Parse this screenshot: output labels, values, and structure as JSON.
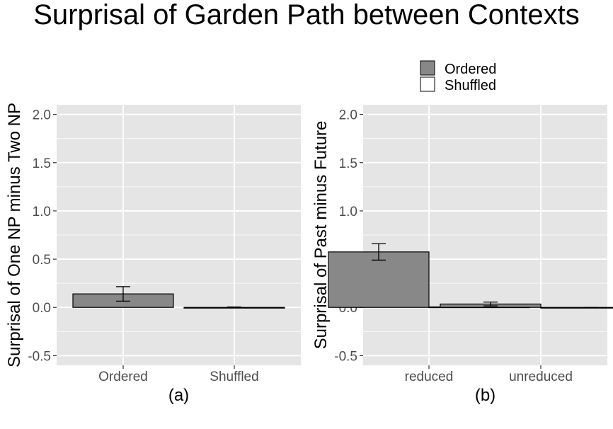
{
  "title": "Surprisal of Garden Path between Contexts",
  "legend": {
    "placement": "top-right",
    "items": [
      {
        "label": "Ordered",
        "color": "#888888"
      },
      {
        "label": "Shuffled",
        "color": "#ffffff"
      }
    ]
  },
  "colors": {
    "panel_background": "#e5e5e5",
    "grid": "#ffffff",
    "bar_outline": "#000000"
  },
  "chart_data": [
    {
      "type": "bar",
      "panel_label": "(a)",
      "ylabel": "Surprisal of One NP minus Two NP",
      "categories": [
        "Ordered",
        "Shuffled"
      ],
      "series": [
        {
          "name": "Ordered",
          "values": [
            0.14,
            null
          ],
          "error": [
            0.075,
            null
          ]
        },
        {
          "name": "Shuffled",
          "values": [
            null,
            0.0
          ],
          "error": [
            null,
            0.004
          ]
        }
      ],
      "ylim": [
        -0.6,
        2.1
      ],
      "yticks": [
        -0.5,
        0.0,
        0.5,
        1.0,
        1.5,
        2.0
      ],
      "ytick_labels": [
        "-0.5",
        "0.0",
        "0.5",
        "1.0",
        "1.5",
        "2.0"
      ],
      "grid": true
    },
    {
      "type": "bar",
      "panel_label": "(b)",
      "ylabel": "Surprisal of Past minus Future",
      "categories": [
        "reduced",
        "unreduced"
      ],
      "series": [
        {
          "name": "Ordered",
          "values": [
            0.575,
            0.035
          ],
          "error": [
            0.085,
            0.02
          ]
        },
        {
          "name": "Shuffled",
          "values": [
            0.005,
            -0.002
          ],
          "error": [
            0.003,
            0.002
          ]
        }
      ],
      "ylim": [
        -0.6,
        2.1
      ],
      "yticks": [
        -0.5,
        0.0,
        0.5,
        1.0,
        1.5,
        2.0
      ],
      "ytick_labels": [
        "-0.5",
        "0.0",
        "0.5",
        "1.0",
        "1.5",
        "2.0"
      ],
      "grid": true
    }
  ]
}
